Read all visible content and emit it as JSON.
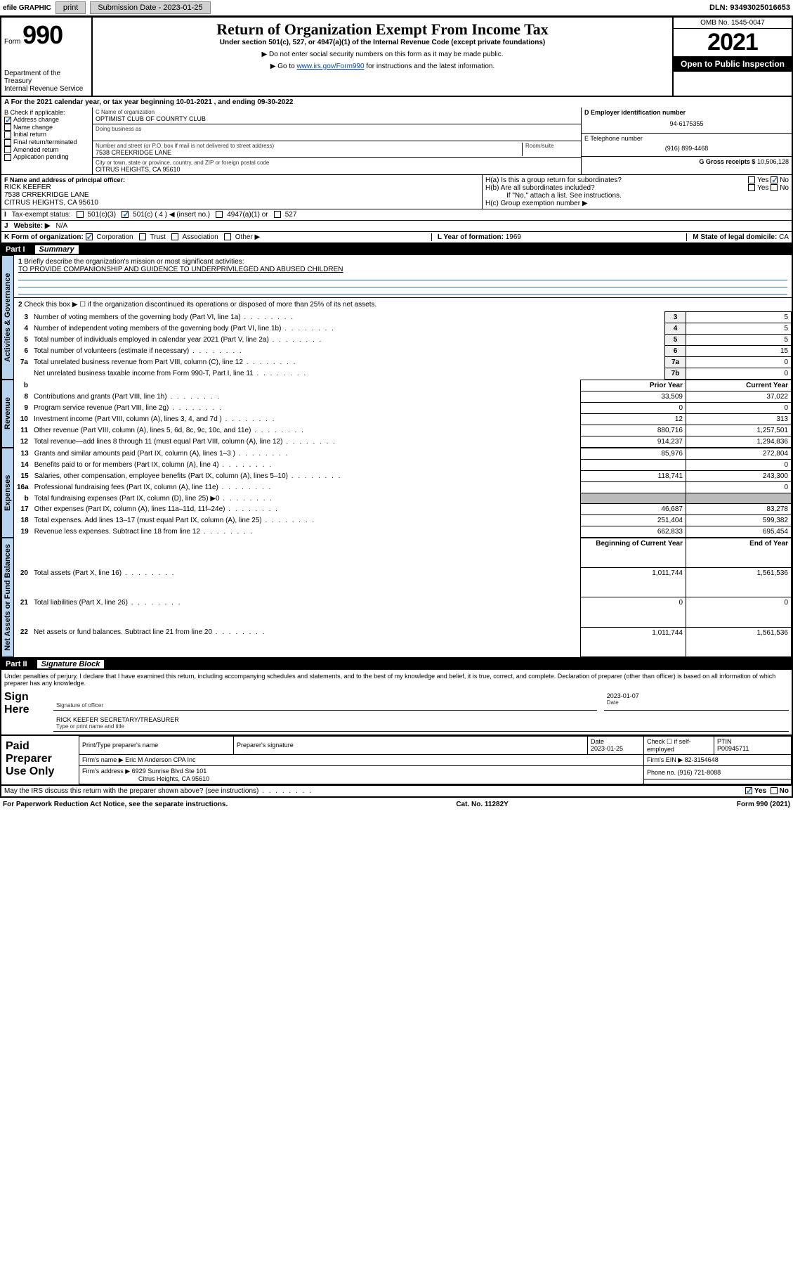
{
  "topbar": {
    "efile": "efile GRAPHIC",
    "print": "print",
    "subdate_label": "Submission Date - 2023-01-25",
    "dln": "DLN: 93493025016653"
  },
  "header": {
    "form_prefix": "Form",
    "form_no": "990",
    "dept": "Department of the Treasury",
    "irs": "Internal Revenue Service",
    "title": "Return of Organization Exempt From Income Tax",
    "sub1": "Under section 501(c), 527, or 4947(a)(1) of the Internal Revenue Code (except private foundations)",
    "sub2": "▶ Do not enter social security numbers on this form as it may be made public.",
    "sub3a": "▶ Go to ",
    "sub3link": "www.irs.gov/Form990",
    "sub3b": " for instructions and the latest information.",
    "omb": "OMB No. 1545-0047",
    "year": "2021",
    "open": "Open to Public Inspection"
  },
  "A": {
    "text": "A For the 2021 calendar year, or tax year beginning 10-01-2021   , and ending 09-30-2022"
  },
  "B": {
    "label": "B Check if applicable:",
    "items": [
      {
        "t": "Address change",
        "on": true
      },
      {
        "t": "Name change",
        "on": false
      },
      {
        "t": "Initial return",
        "on": false
      },
      {
        "t": "Final return/terminated",
        "on": false
      },
      {
        "t": "Amended return",
        "on": false
      },
      {
        "t": "Application pending",
        "on": false
      }
    ]
  },
  "C": {
    "name_label": "C Name of organization",
    "name": "OPTIMIST CLUB OF COUNRTY CLUB",
    "dba_label": "Doing business as",
    "addr_label": "Number and street (or P.O. box if mail is not delivered to street address)",
    "room_label": "Room/suite",
    "addr": "7538 CREEKRIDGE LANE",
    "city_label": "City or town, state or province, country, and ZIP or foreign postal code",
    "city": "CITRUS HEIGHTS, CA   95610"
  },
  "D": {
    "label": "D Employer identification number",
    "val": "94-6175355"
  },
  "E": {
    "label": "E Telephone number",
    "val": "(916) 899-4468"
  },
  "G": {
    "label": "G Gross receipts $",
    "val": "10,506,128"
  },
  "F": {
    "label": "F  Name and address of principal officer:",
    "name": "RICK KEEFER",
    "addr": "7538 CRREKRIDGE LANE",
    "city": "CITRUS HEIGHTS, CA  95610"
  },
  "H": {
    "a": "H(a)  Is this a group return for subordinates?",
    "b": "H(b)  Are all subordinates included?",
    "bnote": "If \"No,\" attach a list. See instructions.",
    "c": "H(c)  Group exemption number ▶",
    "yes": "Yes",
    "no": "No"
  },
  "I": {
    "label": "Tax-exempt status:",
    "opts": [
      "501(c)(3)",
      "501(c) ( 4 ) ◀ (insert no.)",
      "4947(a)(1) or",
      "527"
    ],
    "checked": 1
  },
  "J": {
    "label": "Website: ▶",
    "val": "N/A"
  },
  "K": {
    "label": "K Form of organization:",
    "opts": [
      "Corporation",
      "Trust",
      "Association",
      "Other ▶"
    ],
    "checked": 0
  },
  "L": {
    "label": "L Year of formation:",
    "val": "1969"
  },
  "M": {
    "label": "M State of legal domicile:",
    "val": "CA"
  },
  "part1": {
    "label": "Part I",
    "title": "Summary"
  },
  "summary": {
    "line1_label": "Briefly describe the organization's mission or most significant activities:",
    "line1_val": "TO PROVIDE COMPANIONSHIP AND GUIDENCE TO UNDERPRIVILEGED AND ABUSED CHILDREN",
    "line2": "Check this box ▶ ☐  if the organization discontinued its operations or disposed of more than 25% of its net assets."
  },
  "gov_rows": [
    {
      "n": "3",
      "t": "Number of voting members of the governing body (Part VI, line 1a)",
      "ln": "3",
      "v": "5"
    },
    {
      "n": "4",
      "t": "Number of independent voting members of the governing body (Part VI, line 1b)",
      "ln": "4",
      "v": "5"
    },
    {
      "n": "5",
      "t": "Total number of individuals employed in calendar year 2021 (Part V, line 2a)",
      "ln": "5",
      "v": "5"
    },
    {
      "n": "6",
      "t": "Total number of volunteers (estimate if necessary)",
      "ln": "6",
      "v": "15"
    },
    {
      "n": "7a",
      "t": "Total unrelated business revenue from Part VIII, column (C), line 12",
      "ln": "7a",
      "v": "0"
    },
    {
      "n": "",
      "t": "Net unrelated business taxable income from Form 990-T, Part I, line 11",
      "ln": "7b",
      "v": "0"
    }
  ],
  "col_hdrs": {
    "prior": "Prior Year",
    "current": "Current Year",
    "boy": "Beginning of Current Year",
    "eoy": "End of Year"
  },
  "rev_rows": [
    {
      "n": "8",
      "t": "Contributions and grants (Part VIII, line 1h)",
      "p": "33,509",
      "c": "37,022"
    },
    {
      "n": "9",
      "t": "Program service revenue (Part VIII, line 2g)",
      "p": "0",
      "c": "0"
    },
    {
      "n": "10",
      "t": "Investment income (Part VIII, column (A), lines 3, 4, and 7d )",
      "p": "12",
      "c": "313"
    },
    {
      "n": "11",
      "t": "Other revenue (Part VIII, column (A), lines 5, 6d, 8c, 9c, 10c, and 11e)",
      "p": "880,716",
      "c": "1,257,501"
    },
    {
      "n": "12",
      "t": "Total revenue—add lines 8 through 11 (must equal Part VIII, column (A), line 12)",
      "p": "914,237",
      "c": "1,294,836"
    }
  ],
  "exp_rows": [
    {
      "n": "13",
      "t": "Grants and similar amounts paid (Part IX, column (A), lines 1–3 )",
      "p": "85,976",
      "c": "272,804"
    },
    {
      "n": "14",
      "t": "Benefits paid to or for members (Part IX, column (A), line 4)",
      "p": "",
      "c": "0"
    },
    {
      "n": "15",
      "t": "Salaries, other compensation, employee benefits (Part IX, column (A), lines 5–10)",
      "p": "118,741",
      "c": "243,300"
    },
    {
      "n": "16a",
      "t": "Professional fundraising fees (Part IX, column (A), line 11e)",
      "p": "",
      "c": "0"
    },
    {
      "n": "b",
      "t": "Total fundraising expenses (Part IX, column (D), line 25) ▶0",
      "p": "gray",
      "c": "gray"
    },
    {
      "n": "17",
      "t": "Other expenses (Part IX, column (A), lines 11a–11d, 11f–24e)",
      "p": "46,687",
      "c": "83,278"
    },
    {
      "n": "18",
      "t": "Total expenses. Add lines 13–17 (must equal Part IX, column (A), line 25)",
      "p": "251,404",
      "c": "599,382"
    },
    {
      "n": "19",
      "t": "Revenue less expenses. Subtract line 18 from line 12",
      "p": "662,833",
      "c": "695,454"
    }
  ],
  "net_rows": [
    {
      "n": "20",
      "t": "Total assets (Part X, line 16)",
      "p": "1,011,744",
      "c": "1,561,536"
    },
    {
      "n": "21",
      "t": "Total liabilities (Part X, line 26)",
      "p": "0",
      "c": "0"
    },
    {
      "n": "22",
      "t": "Net assets or fund balances. Subtract line 21 from line 20",
      "p": "1,011,744",
      "c": "1,561,536"
    }
  ],
  "tabs": {
    "gov": "Activities & Governance",
    "rev": "Revenue",
    "exp": "Expenses",
    "net": "Net Assets or Fund Balances"
  },
  "part2": {
    "label": "Part II",
    "title": "Signature Block"
  },
  "sig": {
    "decl": "Under penalties of perjury, I declare that I have examined this return, including accompanying schedules and statements, and to the best of my knowledge and belief, it is true, correct, and complete. Declaration of preparer (other than officer) is based on all information of which preparer has any knowledge.",
    "sign_here": "Sign Here",
    "sig_officer": "Signature of officer",
    "date": "2023-01-07",
    "date_label": "Date",
    "name": "RICK KEEFER  SECRETARY/TREASURER",
    "name_label": "Type or print name and title"
  },
  "paid": {
    "label": "Paid Preparer Use Only",
    "h1": "Print/Type preparer's name",
    "h2": "Preparer's signature",
    "h3": "Date",
    "h3v": "2023-01-25",
    "h4": "Check ☐ if self-employed",
    "h5": "PTIN",
    "h5v": "P00945711",
    "firm_label": "Firm's name    ▶",
    "firm": "Eric M Anderson CPA Inc",
    "ein_label": "Firm's EIN ▶",
    "ein": "82-3154648",
    "addr_label": "Firm's address ▶",
    "addr1": "6929 Sunrise Blvd Ste 101",
    "addr2": "Citrus Heights, CA  95610",
    "phone_label": "Phone no.",
    "phone": "(916) 721-8088"
  },
  "discuss": {
    "text": "May the IRS discuss this return with the preparer shown above? (see instructions)",
    "yes": "Yes",
    "no": "No"
  },
  "footer": {
    "left": "For Paperwork Reduction Act Notice, see the separate instructions.",
    "mid": "Cat. No. 11282Y",
    "right": "Form 990 (2021)"
  },
  "colors": {
    "link": "#0645ad",
    "chk": "#2a6fb5",
    "tab": "#b7d4ee"
  }
}
